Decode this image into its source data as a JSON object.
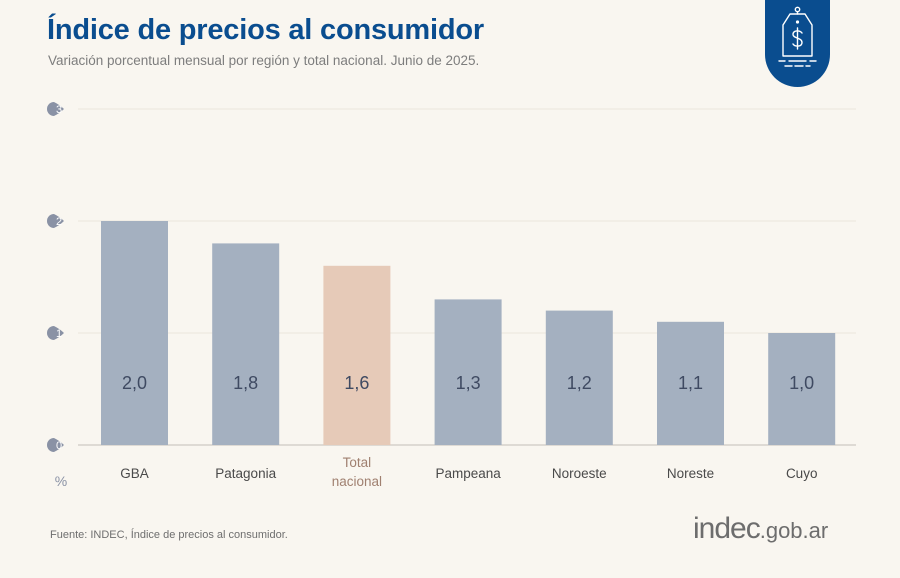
{
  "header": {
    "title": "Índice de precios al consumidor",
    "subtitle": "Variación porcentual mensual por región y total nacional. Junio de 2025."
  },
  "badge": {
    "icon": "price-tag-dollar-icon"
  },
  "colors": {
    "title": "#0a4d8f",
    "bar_region": "#a4b0c0",
    "bar_total": "#e6cab8",
    "label_total": "#a08070",
    "tick_badge": "#8a92a5",
    "value_text": "#3f4a62"
  },
  "chart_data": {
    "type": "bar",
    "title": "Índice de precios al consumidor",
    "subtitle": "Variación porcentual mensual por región y total nacional. Junio de 2025.",
    "xlabel": "",
    "ylabel": "%",
    "categories": [
      "GBA",
      "Patagonia",
      "Total nacional",
      "Pampeana",
      "Noroeste",
      "Noreste",
      "Cuyo"
    ],
    "category_lines": [
      [
        "GBA"
      ],
      [
        "Patagonia"
      ],
      [
        "Total",
        "nacional"
      ],
      [
        "Pampeana"
      ],
      [
        "Noroeste"
      ],
      [
        "Noreste"
      ],
      [
        "Cuyo"
      ]
    ],
    "values": [
      2.0,
      1.8,
      1.6,
      1.3,
      1.2,
      1.1,
      1.0
    ],
    "value_labels": [
      "2,0",
      "1,8",
      "1,6",
      "1,3",
      "1,2",
      "1,1",
      "1,0"
    ],
    "highlight_index": 2,
    "ylim": [
      0,
      3
    ],
    "yticks": [
      0,
      1,
      2,
      3
    ],
    "ytick_labels": [
      "0",
      "1",
      "2",
      "3"
    ],
    "grid": true,
    "legend": "none"
  },
  "footer": {
    "source": "Fuente: INDEC, Índice de precios al consumidor.",
    "logo_main": "indec",
    "logo_suffix": ".gob.ar"
  }
}
